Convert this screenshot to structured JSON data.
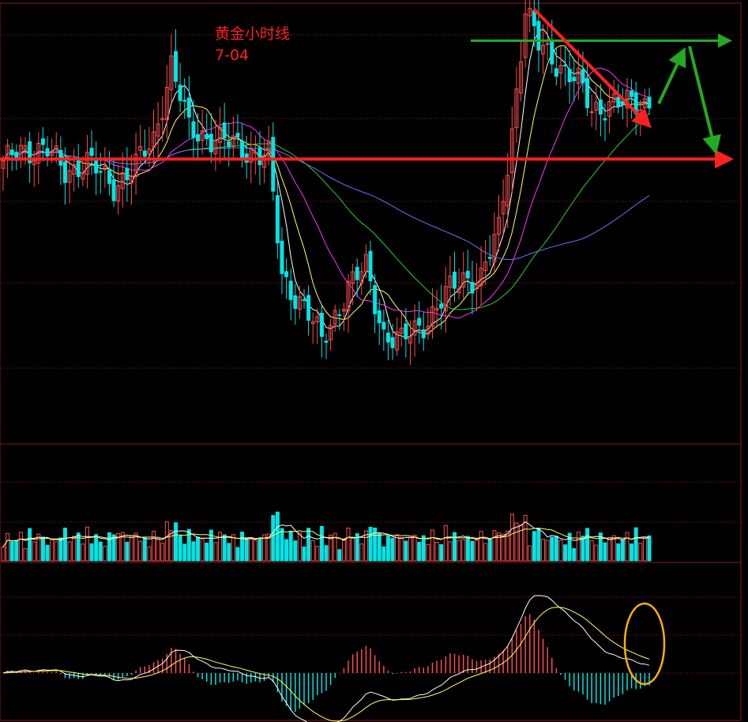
{
  "chart_data": {
    "type": "candlestick",
    "title": "黄金小时线",
    "subtitle": "7-04",
    "price_range": [
      1776,
      1800
    ],
    "colors": {
      "background": "#000000",
      "grid": "#8b1a1a",
      "up": "#ff4d4d",
      "down": "#00e5e5",
      "ma_short": "#ffffff",
      "ma_mid": "#ffff66",
      "ma_long1": "#ff33ff",
      "ma_long2": "#33cc33",
      "ma_long3": "#6f6fff",
      "arrow_down": "#ff2020",
      "arrow_green": "#22aa22",
      "circle": "#ffb000"
    },
    "anchors": [
      [
        0,
        1791.0
      ],
      [
        4,
        1792.0
      ],
      [
        10,
        1791.8
      ],
      [
        14,
        1790.8
      ],
      [
        19,
        1791.2
      ],
      [
        25,
        1790.0
      ],
      [
        30,
        1791.0
      ],
      [
        34,
        1792.5
      ],
      [
        38,
        1796.5
      ],
      [
        42,
        1793.0
      ],
      [
        48,
        1792.5
      ],
      [
        54,
        1792.0
      ],
      [
        60,
        1791.5
      ],
      [
        63,
        1785.0
      ],
      [
        68,
        1783.5
      ],
      [
        72,
        1781.5
      ],
      [
        78,
        1784.5
      ],
      [
        82,
        1785.5
      ],
      [
        86,
        1782.0
      ],
      [
        90,
        1781.5
      ],
      [
        96,
        1782.8
      ],
      [
        100,
        1784.0
      ],
      [
        104,
        1785.0
      ],
      [
        108,
        1785.0
      ],
      [
        112,
        1787.5
      ],
      [
        115,
        1793.0
      ],
      [
        118,
        1799.5
      ],
      [
        121,
        1797.5
      ],
      [
        126,
        1796.5
      ],
      [
        130,
        1795.5
      ],
      [
        133,
        1794.0
      ],
      [
        137,
        1794.5
      ],
      [
        142,
        1794.3
      ],
      [
        146,
        1794.5
      ]
    ],
    "reference_levels": {
      "resistance": 1797.8,
      "support": 1791.4
    },
    "macd_circle": "bottom-right"
  }
}
